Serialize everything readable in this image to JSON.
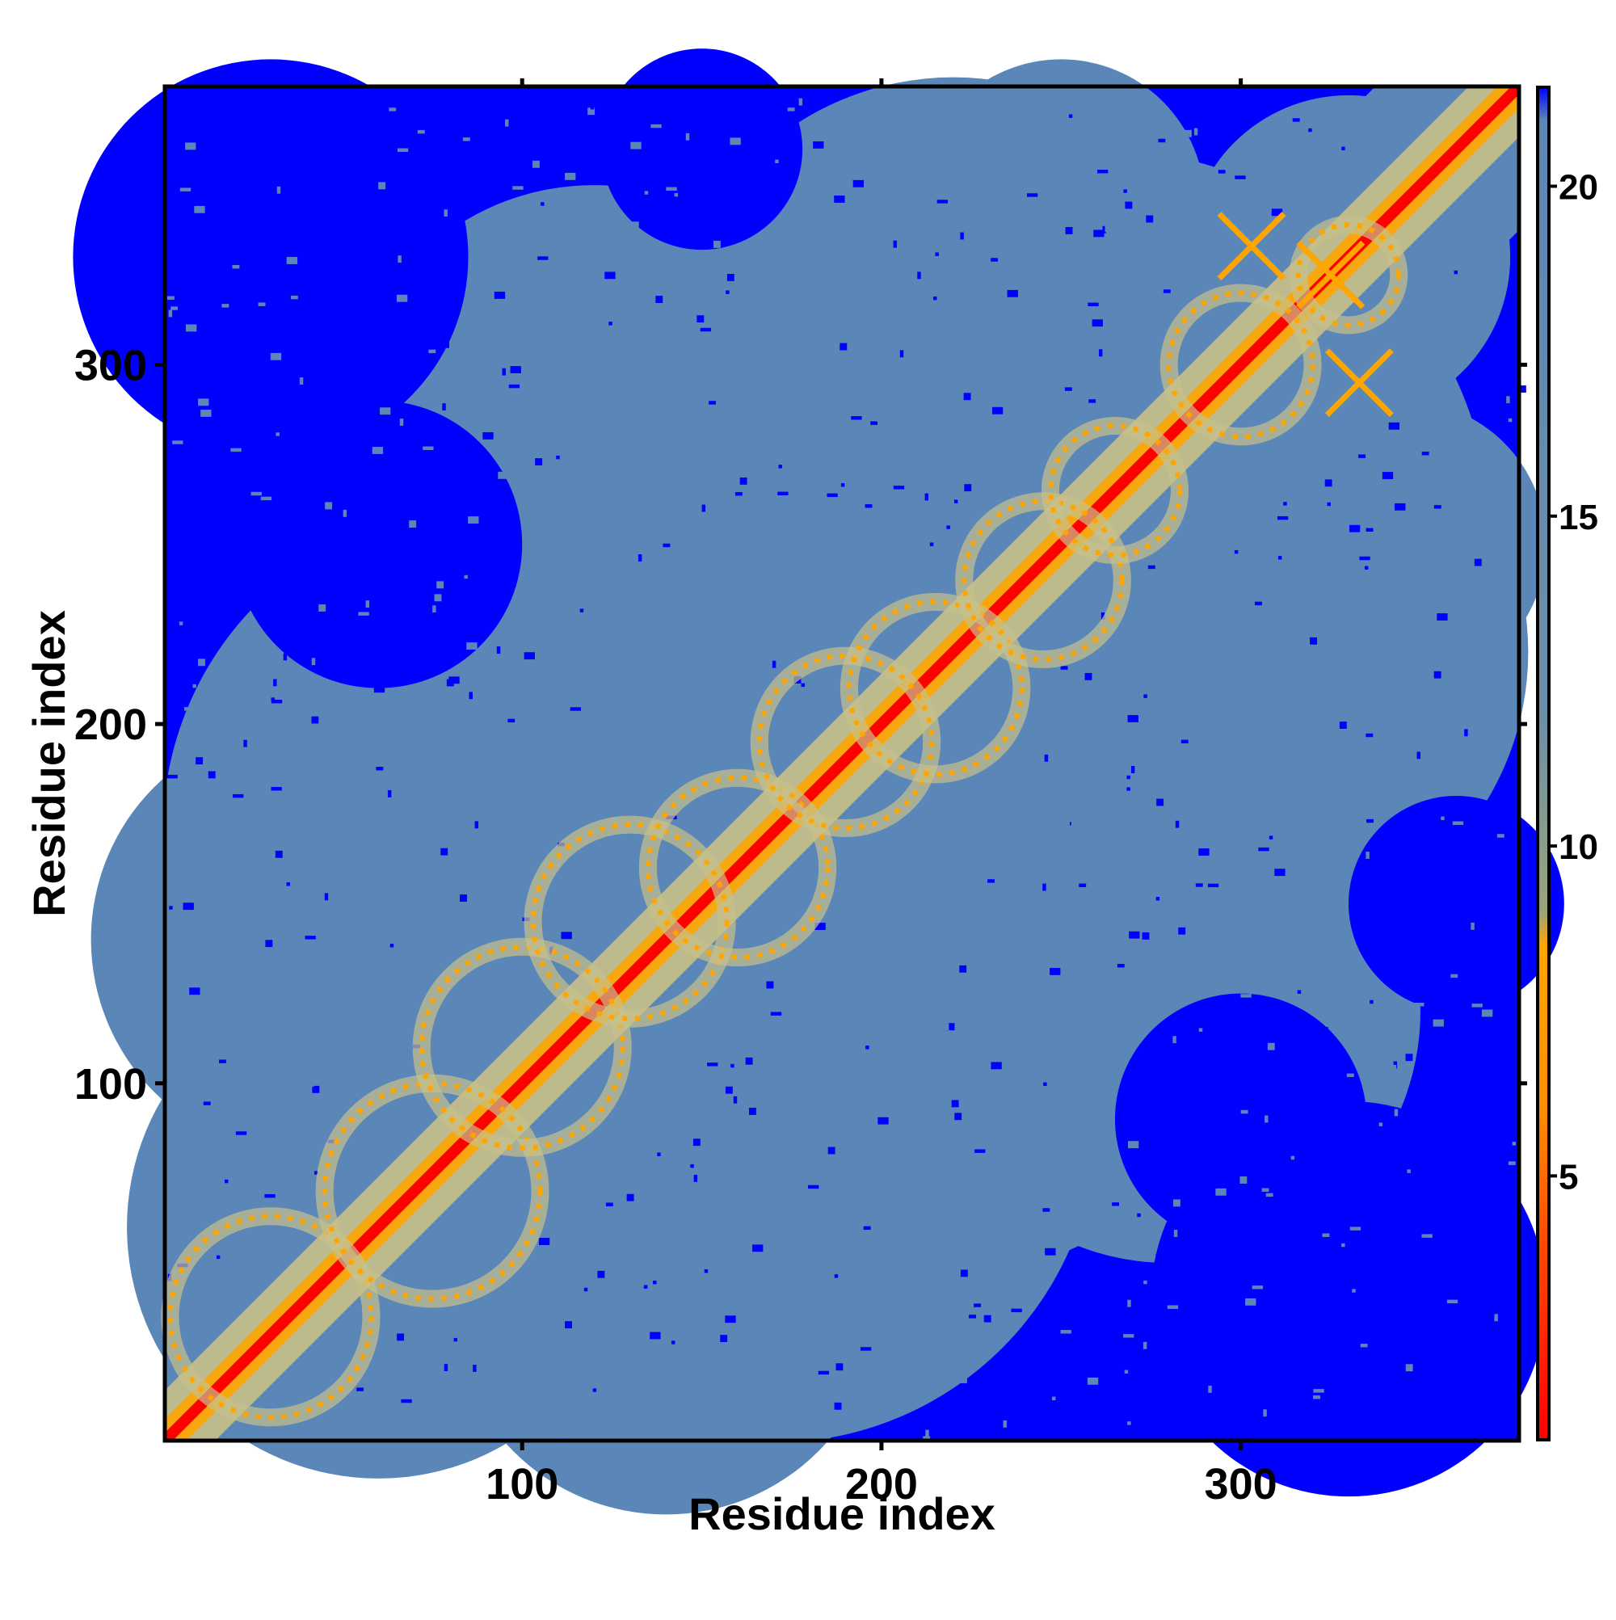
{
  "chart_data": {
    "type": "heatmap",
    "description_kind": "residue distance map",
    "xlabel": "Residue index",
    "ylabel": "Residue index",
    "xlim": [
      1,
      377
    ],
    "ylim": [
      1,
      377
    ],
    "x_ticks": [
      100,
      200,
      300
    ],
    "y_ticks": [
      100,
      200,
      300
    ],
    "colorbar": {
      "range": [
        1,
        21.5
      ],
      "ticks": [
        5,
        10,
        15,
        20
      ],
      "orientation": "vertical",
      "placement": "right",
      "stops": [
        {
          "value": 1,
          "color": "#ff0000"
        },
        {
          "value": 4,
          "color": "#ff4a00"
        },
        {
          "value": 6,
          "color": "#ff8c00"
        },
        {
          "value": 8.5,
          "color": "#ffa500"
        },
        {
          "value": 9,
          "color": "#9aa57a"
        },
        {
          "value": 12,
          "color": "#6b8fa8"
        },
        {
          "value": 21,
          "color": "#5b87b8"
        },
        {
          "value": 21.5,
          "color": "#0000ff"
        }
      ]
    },
    "colors": {
      "contact": "#ff0000",
      "near": "#ffa500",
      "mid": "#c8c08a",
      "far": "#5b87b8",
      "saturated": "#0000ff"
    },
    "features": {
      "diagonal": {
        "distance": 1,
        "band_width_residues": 3
      },
      "helical_rings": [
        {
          "x": 30,
          "y": 35,
          "r": 28
        },
        {
          "x": 75,
          "y": 70,
          "r": 30
        },
        {
          "x": 100,
          "y": 110,
          "r": 28
        },
        {
          "x": 130,
          "y": 145,
          "r": 27
        },
        {
          "x": 160,
          "y": 160,
          "r": 25
        },
        {
          "x": 190,
          "y": 195,
          "r": 24
        },
        {
          "x": 215,
          "y": 210,
          "r": 24
        },
        {
          "x": 245,
          "y": 240,
          "r": 22
        },
        {
          "x": 265,
          "y": 265,
          "r": 18
        },
        {
          "x": 300,
          "y": 300,
          "r": 20
        },
        {
          "x": 330,
          "y": 325,
          "r": 14
        }
      ],
      "contact_crosses": [
        {
          "x": 325,
          "y": 325
        },
        {
          "x": 303,
          "y": 333
        },
        {
          "x": 333,
          "y": 295
        }
      ],
      "far_regions": [
        {
          "x": 30,
          "y": 330,
          "r": 55
        },
        {
          "x": 60,
          "y": 250,
          "r": 40
        },
        {
          "x": 330,
          "y": 40,
          "r": 55
        },
        {
          "x": 300,
          "y": 90,
          "r": 35
        },
        {
          "x": 360,
          "y": 150,
          "r": 30
        },
        {
          "x": 150,
          "y": 360,
          "r": 28
        }
      ]
    }
  }
}
